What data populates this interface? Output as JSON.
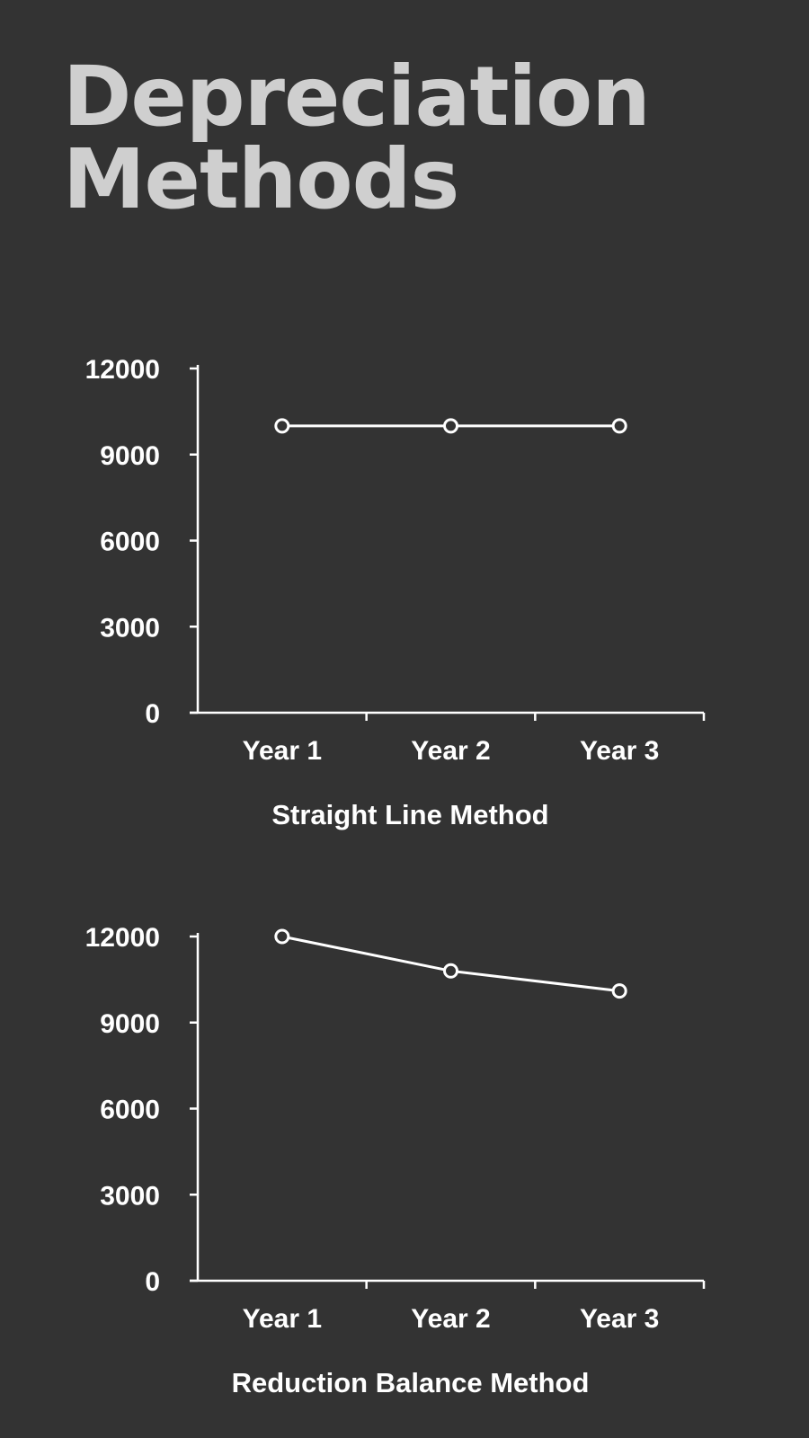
{
  "title": {
    "line1": "Depreciation",
    "line2": "Methods"
  },
  "colors": {
    "background": "#333333",
    "title": "#cfcfcf",
    "ink": "#ffffff"
  },
  "chart_data": [
    {
      "type": "line",
      "title": "Straight Line Method",
      "categories": [
        "Year 1",
        "Year 2",
        "Year 3"
      ],
      "series": [
        {
          "values": [
            10000,
            10000,
            10000
          ]
        }
      ],
      "yticks": [
        0,
        3000,
        6000,
        9000,
        12000
      ],
      "ylim": [
        0,
        12000
      ],
      "grid": false,
      "legend": "none",
      "markers": "hollow-circle"
    },
    {
      "type": "line",
      "title": "Reduction Balance Method",
      "categories": [
        "Year 1",
        "Year 2",
        "Year 3"
      ],
      "series": [
        {
          "values": [
            12000,
            10800,
            10100
          ]
        }
      ],
      "yticks": [
        0,
        3000,
        6000,
        9000,
        12000
      ],
      "ylim": [
        0,
        12000
      ],
      "grid": false,
      "legend": "none",
      "markers": "hollow-circle"
    }
  ]
}
